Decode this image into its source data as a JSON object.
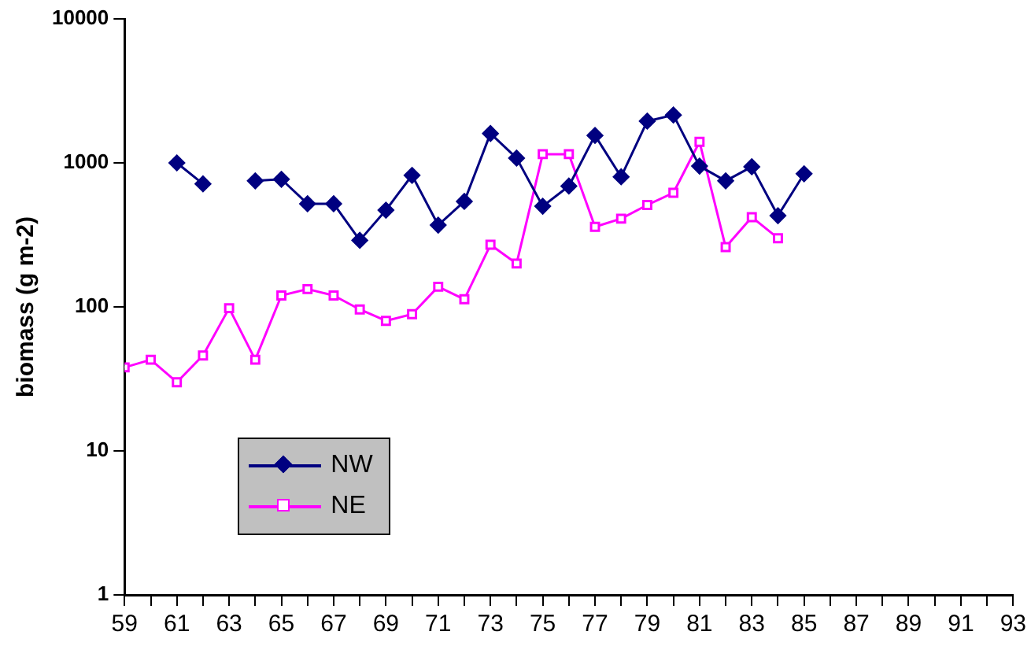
{
  "chart_data": {
    "type": "line",
    "ylabel": "biomass (g m-2)",
    "log": "y",
    "xlim": [
      59,
      93
    ],
    "ylim": [
      1,
      10000
    ],
    "yticks": [
      1,
      10,
      100,
      1000,
      10000
    ],
    "xticks": [
      59,
      {
        "value": 60,
        "label": null
      },
      61,
      {
        "value": 62,
        "label": null
      },
      63,
      {
        "value": 64,
        "label": null
      },
      65,
      {
        "value": 66,
        "label": null
      },
      67,
      {
        "value": 68,
        "label": null
      },
      69,
      {
        "value": 70,
        "label": null
      },
      71,
      {
        "value": 72,
        "label": null
      },
      73,
      {
        "value": 74,
        "label": null
      },
      75,
      {
        "value": 76,
        "label": null
      },
      77,
      {
        "value": 78,
        "label": null
      },
      79,
      {
        "value": 80,
        "label": null
      },
      81,
      {
        "value": 82,
        "label": null
      },
      83,
      {
        "value": 84,
        "label": null
      },
      85,
      {
        "value": 86,
        "label": null
      },
      87,
      {
        "value": 88,
        "label": null
      },
      89,
      {
        "value": 90,
        "label": null
      },
      91,
      {
        "value": 92,
        "label": null
      },
      93
    ],
    "x": [
      59,
      60,
      61,
      62,
      63,
      64,
      65,
      66,
      67,
      68,
      69,
      70,
      71,
      72,
      73,
      74,
      75,
      76,
      77,
      78,
      79,
      80,
      81,
      82,
      83,
      84,
      85
    ],
    "grid": false,
    "legend": "bottom left",
    "series": [
      {
        "name": "NW",
        "color": "#000080",
        "marker": "diamond",
        "values": [
          null,
          null,
          1000,
          715,
          null,
          750,
          770,
          520,
          520,
          290,
          470,
          820,
          370,
          540,
          1600,
          1080,
          500,
          690,
          1550,
          800,
          1950,
          2150,
          950,
          750,
          940,
          430,
          840
        ]
      },
      {
        "name": "NE",
        "color": "#ff00ff",
        "marker": "square",
        "values": [
          38,
          43,
          30,
          46,
          98,
          43,
          120,
          133,
          120,
          96,
          80,
          89,
          138,
          113,
          270,
          200,
          1150,
          1150,
          360,
          410,
          510,
          620,
          1400,
          260,
          420,
          300,
          null
        ]
      }
    ]
  }
}
